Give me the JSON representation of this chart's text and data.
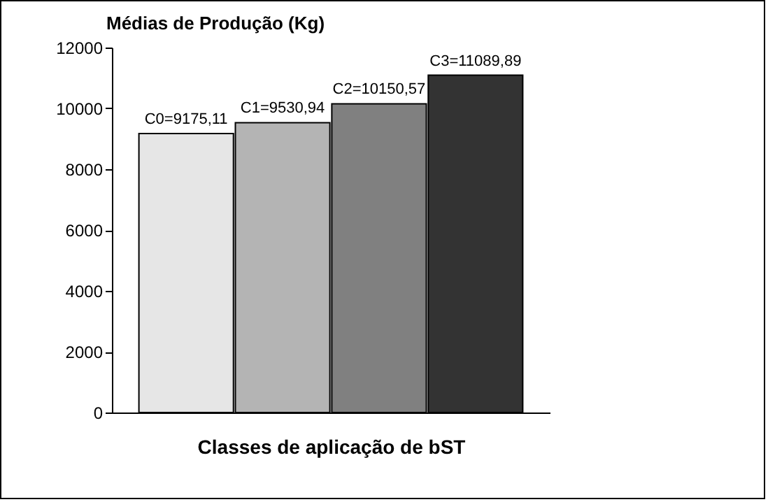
{
  "chart_data": {
    "type": "bar",
    "title": "Médias de Produção (Kg)",
    "xlabel": "Classes de aplicação de bST",
    "categories": [
      null,
      null,
      null,
      null
    ],
    "values": [
      9175.11,
      9530.94,
      10150.57,
      11089.89
    ],
    "colors": [
      "#e6e6e6",
      "#b4b4b4",
      "#808080",
      "#333333"
    ],
    "value_labels": [
      "C0=9175,11",
      "C1=9530,94",
      "C2=10150,57",
      "C3=11089,89"
    ],
    "ylim": [
      0,
      12000
    ],
    "yticks": [
      0,
      2000,
      4000,
      6000,
      8000,
      10000,
      12000
    ],
    "tick_labels": "y"
  }
}
